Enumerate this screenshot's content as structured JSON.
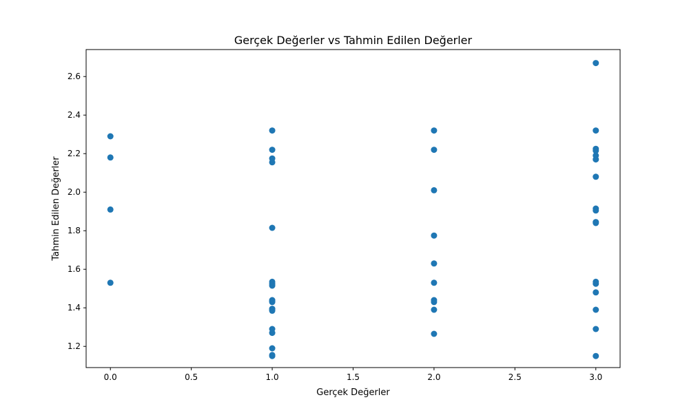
{
  "chart_data": {
    "type": "scatter",
    "title": "Gerçek Değerler vs Tahmin Edilen Değerler",
    "xlabel": "Gerçek Değerler",
    "ylabel": "Tahmin Edilen Değerler",
    "xlim": [
      -0.15,
      3.15
    ],
    "ylim": [
      1.09,
      2.74
    ],
    "xticks": [
      0.0,
      0.5,
      1.0,
      1.5,
      2.0,
      2.5,
      3.0
    ],
    "xtick_labels": [
      "0.0",
      "0.5",
      "1.0",
      "1.5",
      "2.0",
      "2.5",
      "3.0"
    ],
    "yticks": [
      1.2,
      1.4,
      1.6,
      1.8,
      2.0,
      2.2,
      2.4,
      2.6
    ],
    "ytick_labels": [
      "1.2",
      "1.4",
      "1.6",
      "1.8",
      "2.0",
      "2.2",
      "2.4",
      "2.6"
    ],
    "grid": false,
    "marker_color": "#1f77b4",
    "series": [
      {
        "x": [
          0,
          0,
          0,
          0,
          1,
          1,
          1,
          1,
          1,
          1,
          1,
          1,
          1,
          1,
          1,
          1,
          1,
          1,
          1,
          1,
          1,
          1,
          1,
          2,
          2,
          2,
          2,
          2,
          2,
          2,
          2,
          2,
          2,
          3,
          3,
          3,
          3,
          3,
          3,
          3,
          3,
          3,
          3,
          3,
          3,
          3,
          3,
          3,
          3,
          3
        ],
        "y": [
          2.29,
          2.18,
          1.91,
          1.53,
          2.32,
          2.22,
          2.175,
          2.155,
          1.815,
          1.535,
          1.525,
          1.515,
          1.44,
          1.435,
          1.43,
          1.395,
          1.39,
          1.385,
          1.29,
          1.27,
          1.19,
          1.155,
          1.15,
          2.32,
          2.22,
          2.01,
          1.775,
          1.63,
          1.53,
          1.44,
          1.43,
          1.39,
          1.265,
          2.67,
          2.32,
          2.225,
          2.215,
          2.19,
          2.17,
          2.08,
          1.915,
          1.905,
          1.845,
          1.84,
          1.535,
          1.525,
          1.48,
          1.39,
          1.29,
          1.15
        ]
      }
    ]
  }
}
